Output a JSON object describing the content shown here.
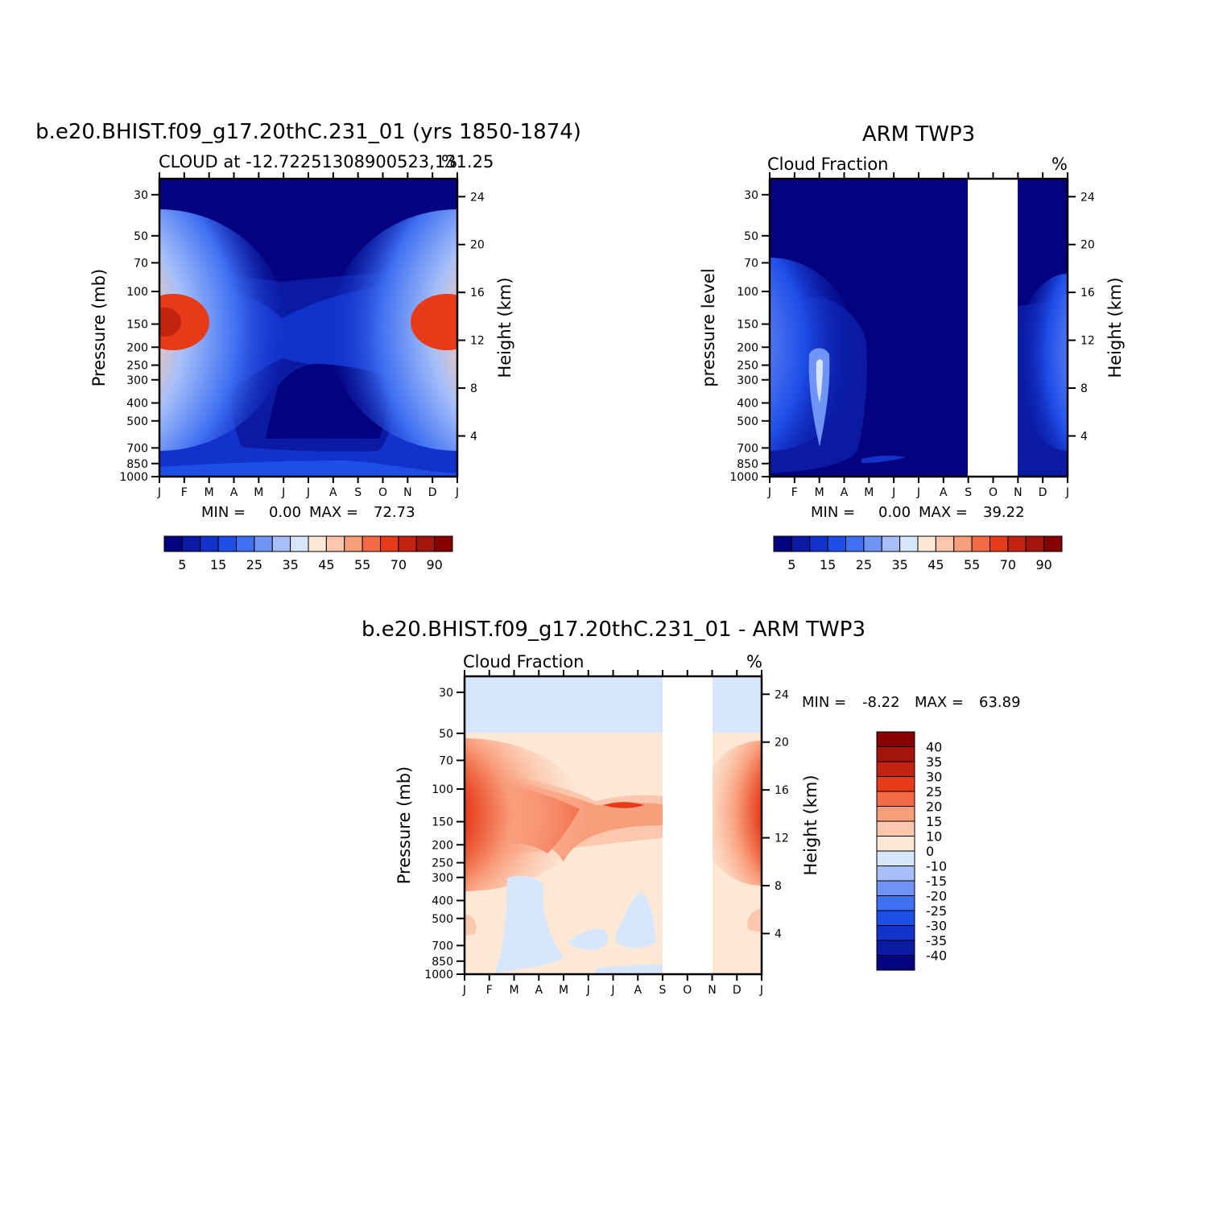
{
  "chart_data": [
    {
      "type": "heatmap",
      "title": "b.e20.BHIST.f09_g17.20thC.231_01 (yrs 1850-1874)",
      "subtitle": "CLOUD at -12.72251308900523,131.25",
      "units": "%",
      "xlabel": "",
      "ylabel": "Pressure (mb)",
      "ylabel_right": "Height (km)",
      "x_ticks": [
        "J",
        "F",
        "M",
        "A",
        "M",
        "J",
        "J",
        "A",
        "S",
        "O",
        "N",
        "D",
        "J"
      ],
      "y_ticks": [
        "30",
        "50",
        "70",
        "100",
        "150",
        "200",
        "250",
        "300",
        "400",
        "500",
        "700",
        "850",
        "1000"
      ],
      "y_ticks_right": [
        "24",
        "20",
        "16",
        "12",
        "8",
        "4"
      ],
      "min_label": "MIN =",
      "min_value": "0.00",
      "max_label": "MAX =",
      "max_value": "72.73",
      "colorbar_labels": [
        "5",
        "15",
        "25",
        "35",
        "45",
        "55",
        "70",
        "90"
      ],
      "colorbar_levels": [
        5,
        10,
        15,
        20,
        25,
        30,
        35,
        40,
        45,
        50,
        55,
        60,
        70,
        80,
        90
      ],
      "colors": [
        "#03037f",
        "#0a1aa3",
        "#1232cc",
        "#1e4de8",
        "#3f70f2",
        "#7094f5",
        "#a6bff9",
        "#d6e6fd",
        "#fde8d6",
        "#fcc7ad",
        "#f99e7b",
        "#f36a45",
        "#e63a18",
        "#c32210",
        "#a3140c",
        "#870000"
      ],
      "cells": [
        {
          "month": "J",
          "value": 70
        },
        {
          "month": "F",
          "value": 62
        },
        {
          "month": "M",
          "value": 45
        },
        {
          "month": "A",
          "value": 33
        },
        {
          "month": "M",
          "value": 22
        },
        {
          "month": "J",
          "value": 15
        },
        {
          "month": "J",
          "value": 14
        },
        {
          "month": "A",
          "value": 15
        },
        {
          "month": "S",
          "value": 18
        },
        {
          "month": "O",
          "value": 26
        },
        {
          "month": "N",
          "value": 38
        },
        {
          "month": "D",
          "value": 62
        }
      ]
    },
    {
      "type": "heatmap",
      "title": "ARM TWP3",
      "subtitle": "Cloud Fraction",
      "units": "%",
      "xlabel": "",
      "ylabel": "pressure level",
      "ylabel_right": "Height (km)",
      "x_ticks": [
        "J",
        "F",
        "M",
        "A",
        "M",
        "J",
        "J",
        "A",
        "S",
        "O",
        "N",
        "D",
        "J"
      ],
      "y_ticks": [
        "30",
        "50",
        "70",
        "100",
        "150",
        "200",
        "250",
        "300",
        "400",
        "500",
        "700",
        "850",
        "1000"
      ],
      "y_ticks_right": [
        "24",
        "20",
        "16",
        "12",
        "8",
        "4"
      ],
      "min_label": "MIN =",
      "min_value": "0.00",
      "max_label": "MAX =",
      "max_value": "39.22",
      "colorbar_labels": [
        "5",
        "15",
        "25",
        "35",
        "45",
        "55",
        "70",
        "90"
      ],
      "missing_months": [
        "S",
        "O"
      ]
    },
    {
      "type": "heatmap",
      "title": "b.e20.BHIST.f09_g17.20thC.231_01 - ARM TWP3",
      "subtitle": "Cloud Fraction",
      "units": "%",
      "xlabel": "",
      "ylabel": "Pressure (mb)",
      "ylabel_right": "Height (km)",
      "x_ticks": [
        "J",
        "F",
        "M",
        "A",
        "M",
        "J",
        "J",
        "A",
        "S",
        "O",
        "N",
        "D",
        "J"
      ],
      "y_ticks": [
        "30",
        "50",
        "70",
        "100",
        "150",
        "200",
        "250",
        "300",
        "400",
        "500",
        "700",
        "850",
        "1000"
      ],
      "y_ticks_right": [
        "24",
        "20",
        "16",
        "12",
        "8",
        "4"
      ],
      "min_label": "MIN =",
      "min_value": "-8.22",
      "max_label": "MAX =",
      "max_value": "63.89",
      "colorbar_labels": [
        "40",
        "35",
        "30",
        "25",
        "20",
        "15",
        "10",
        "0",
        "-10",
        "-15",
        "-20",
        "-25",
        "-30",
        "-35",
        "-40"
      ],
      "colors": [
        "#870000",
        "#a3140c",
        "#c32210",
        "#e63a18",
        "#f36a45",
        "#f99e7b",
        "#fcc7ad",
        "#fde8d6",
        "#d6e6fd",
        "#a6bff9",
        "#7094f5",
        "#3f70f2",
        "#1e4de8",
        "#1232cc",
        "#0a1aa3",
        "#03037f"
      ],
      "missing_months": [
        "S",
        "O"
      ]
    }
  ]
}
